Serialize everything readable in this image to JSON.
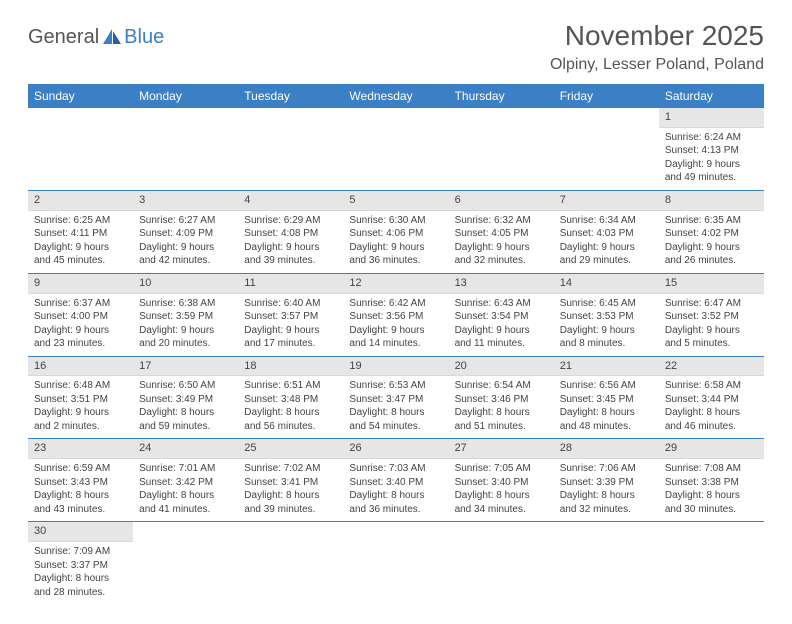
{
  "logo": {
    "text1": "General",
    "text2": "Blue"
  },
  "title": "November 2025",
  "location": "Olpiny, Lesser Poland, Poland",
  "colors": {
    "header_bg": "#3b7fc4",
    "header_text": "#ffffff",
    "daynum_bg": "#e6e6e6",
    "border": "#3b7fc4",
    "body_text": "#444444",
    "title_text": "#555555"
  },
  "dayNames": [
    "Sunday",
    "Monday",
    "Tuesday",
    "Wednesday",
    "Thursday",
    "Friday",
    "Saturday"
  ],
  "weeks": [
    [
      null,
      null,
      null,
      null,
      null,
      null,
      {
        "n": "1",
        "sunrise": "Sunrise: 6:24 AM",
        "sunset": "Sunset: 4:13 PM",
        "daylight": "Daylight: 9 hours and 49 minutes."
      }
    ],
    [
      {
        "n": "2",
        "sunrise": "Sunrise: 6:25 AM",
        "sunset": "Sunset: 4:11 PM",
        "daylight": "Daylight: 9 hours and 45 minutes."
      },
      {
        "n": "3",
        "sunrise": "Sunrise: 6:27 AM",
        "sunset": "Sunset: 4:09 PM",
        "daylight": "Daylight: 9 hours and 42 minutes."
      },
      {
        "n": "4",
        "sunrise": "Sunrise: 6:29 AM",
        "sunset": "Sunset: 4:08 PM",
        "daylight": "Daylight: 9 hours and 39 minutes."
      },
      {
        "n": "5",
        "sunrise": "Sunrise: 6:30 AM",
        "sunset": "Sunset: 4:06 PM",
        "daylight": "Daylight: 9 hours and 36 minutes."
      },
      {
        "n": "6",
        "sunrise": "Sunrise: 6:32 AM",
        "sunset": "Sunset: 4:05 PM",
        "daylight": "Daylight: 9 hours and 32 minutes."
      },
      {
        "n": "7",
        "sunrise": "Sunrise: 6:34 AM",
        "sunset": "Sunset: 4:03 PM",
        "daylight": "Daylight: 9 hours and 29 minutes."
      },
      {
        "n": "8",
        "sunrise": "Sunrise: 6:35 AM",
        "sunset": "Sunset: 4:02 PM",
        "daylight": "Daylight: 9 hours and 26 minutes."
      }
    ],
    [
      {
        "n": "9",
        "sunrise": "Sunrise: 6:37 AM",
        "sunset": "Sunset: 4:00 PM",
        "daylight": "Daylight: 9 hours and 23 minutes."
      },
      {
        "n": "10",
        "sunrise": "Sunrise: 6:38 AM",
        "sunset": "Sunset: 3:59 PM",
        "daylight": "Daylight: 9 hours and 20 minutes."
      },
      {
        "n": "11",
        "sunrise": "Sunrise: 6:40 AM",
        "sunset": "Sunset: 3:57 PM",
        "daylight": "Daylight: 9 hours and 17 minutes."
      },
      {
        "n": "12",
        "sunrise": "Sunrise: 6:42 AM",
        "sunset": "Sunset: 3:56 PM",
        "daylight": "Daylight: 9 hours and 14 minutes."
      },
      {
        "n": "13",
        "sunrise": "Sunrise: 6:43 AM",
        "sunset": "Sunset: 3:54 PM",
        "daylight": "Daylight: 9 hours and 11 minutes."
      },
      {
        "n": "14",
        "sunrise": "Sunrise: 6:45 AM",
        "sunset": "Sunset: 3:53 PM",
        "daylight": "Daylight: 9 hours and 8 minutes."
      },
      {
        "n": "15",
        "sunrise": "Sunrise: 6:47 AM",
        "sunset": "Sunset: 3:52 PM",
        "daylight": "Daylight: 9 hours and 5 minutes."
      }
    ],
    [
      {
        "n": "16",
        "sunrise": "Sunrise: 6:48 AM",
        "sunset": "Sunset: 3:51 PM",
        "daylight": "Daylight: 9 hours and 2 minutes."
      },
      {
        "n": "17",
        "sunrise": "Sunrise: 6:50 AM",
        "sunset": "Sunset: 3:49 PM",
        "daylight": "Daylight: 8 hours and 59 minutes."
      },
      {
        "n": "18",
        "sunrise": "Sunrise: 6:51 AM",
        "sunset": "Sunset: 3:48 PM",
        "daylight": "Daylight: 8 hours and 56 minutes."
      },
      {
        "n": "19",
        "sunrise": "Sunrise: 6:53 AM",
        "sunset": "Sunset: 3:47 PM",
        "daylight": "Daylight: 8 hours and 54 minutes."
      },
      {
        "n": "20",
        "sunrise": "Sunrise: 6:54 AM",
        "sunset": "Sunset: 3:46 PM",
        "daylight": "Daylight: 8 hours and 51 minutes."
      },
      {
        "n": "21",
        "sunrise": "Sunrise: 6:56 AM",
        "sunset": "Sunset: 3:45 PM",
        "daylight": "Daylight: 8 hours and 48 minutes."
      },
      {
        "n": "22",
        "sunrise": "Sunrise: 6:58 AM",
        "sunset": "Sunset: 3:44 PM",
        "daylight": "Daylight: 8 hours and 46 minutes."
      }
    ],
    [
      {
        "n": "23",
        "sunrise": "Sunrise: 6:59 AM",
        "sunset": "Sunset: 3:43 PM",
        "daylight": "Daylight: 8 hours and 43 minutes."
      },
      {
        "n": "24",
        "sunrise": "Sunrise: 7:01 AM",
        "sunset": "Sunset: 3:42 PM",
        "daylight": "Daylight: 8 hours and 41 minutes."
      },
      {
        "n": "25",
        "sunrise": "Sunrise: 7:02 AM",
        "sunset": "Sunset: 3:41 PM",
        "daylight": "Daylight: 8 hours and 39 minutes."
      },
      {
        "n": "26",
        "sunrise": "Sunrise: 7:03 AM",
        "sunset": "Sunset: 3:40 PM",
        "daylight": "Daylight: 8 hours and 36 minutes."
      },
      {
        "n": "27",
        "sunrise": "Sunrise: 7:05 AM",
        "sunset": "Sunset: 3:40 PM",
        "daylight": "Daylight: 8 hours and 34 minutes."
      },
      {
        "n": "28",
        "sunrise": "Sunrise: 7:06 AM",
        "sunset": "Sunset: 3:39 PM",
        "daylight": "Daylight: 8 hours and 32 minutes."
      },
      {
        "n": "29",
        "sunrise": "Sunrise: 7:08 AM",
        "sunset": "Sunset: 3:38 PM",
        "daylight": "Daylight: 8 hours and 30 minutes."
      }
    ],
    [
      {
        "n": "30",
        "sunrise": "Sunrise: 7:09 AM",
        "sunset": "Sunset: 3:37 PM",
        "daylight": "Daylight: 8 hours and 28 minutes."
      },
      null,
      null,
      null,
      null,
      null,
      null
    ]
  ]
}
